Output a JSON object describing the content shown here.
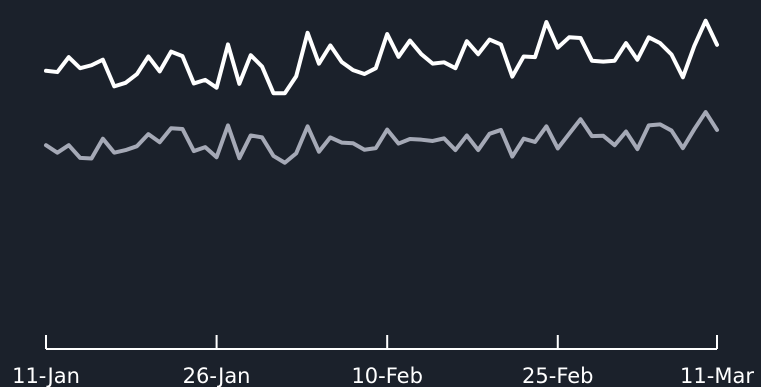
{
  "chart_data": {
    "type": "line",
    "title": "",
    "xlabel": "",
    "ylabel": "",
    "x_start": "2023-01-11",
    "x_end": "2023-03-11",
    "xtick_dates": [
      "2023-01-11",
      "2023-01-26",
      "2023-02-10",
      "2023-02-25",
      "2023-03-11"
    ],
    "xtick_labels": [
      "11-Jan",
      "26-Jan",
      "10-Feb",
      "25-Feb",
      "11-Mar"
    ],
    "ylim": [
      0,
      100
    ],
    "grid": false,
    "legend": "none",
    "background_color": "#1b212b",
    "axis_color": "#ffffff",
    "series": [
      {
        "color": "#ffffff",
        "values": [
          81.3,
          80.9,
          85.5,
          82.1,
          83.0,
          84.7,
          76.5,
          77.6,
          80.3,
          85.7,
          81.1,
          87.2,
          85.8,
          77.4,
          78.5,
          76.1,
          89.4,
          77.3,
          86.1,
          82.6,
          74.4,
          74.4,
          79.6,
          93.0,
          83.5,
          89.1,
          84.0,
          81.5,
          80.3,
          82.1,
          92.6,
          85.6,
          90.6,
          86.4,
          83.5,
          83.9,
          82.1,
          90.4,
          86.4,
          90.9,
          89.4,
          79.5,
          85.7,
          85.5,
          96.3,
          88.4,
          91.6,
          91.4,
          84.4,
          84.1,
          84.4,
          89.8,
          84.7,
          91.6,
          89.8,
          86.3,
          79.3,
          88.9,
          96.7,
          89.3
        ]
      },
      {
        "color": "#a5a9b6",
        "values": [
          58.4,
          56.1,
          58.4,
          54.5,
          54.3,
          60.4,
          56.1,
          56.9,
          58.1,
          61.8,
          59.3,
          63.6,
          63.4,
          56.6,
          57.8,
          54.7,
          64.5,
          54.4,
          61.4,
          60.8,
          55.1,
          53.0,
          55.9,
          64.2,
          56.4,
          60.8,
          59.2,
          59.0,
          57.0,
          57.5,
          63.2,
          58.9,
          60.3,
          60.1,
          59.7,
          60.5,
          56.9,
          61.4,
          56.9,
          61.9,
          63.1,
          54.9,
          60.4,
          59.4,
          64.2,
          57.4,
          61.9,
          66.4,
          61.2,
          61.3,
          58.4,
          62.6,
          57.2,
          64.5,
          64.8,
          62.9,
          57.5,
          63.3,
          68.6,
          63.1
        ]
      }
    ]
  }
}
